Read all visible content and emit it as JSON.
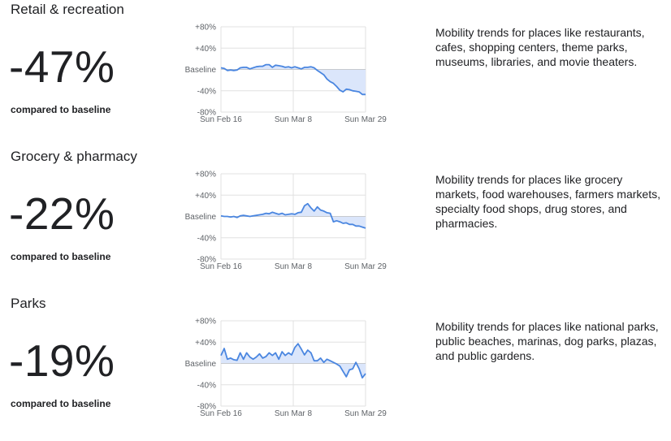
{
  "compared_label": "compared to baseline",
  "colors": {
    "line": "#4a86e0",
    "fill": "#dbe6fb",
    "grid": "#e0e0e0",
    "text": "#202124",
    "axis_text": "#5f6368"
  },
  "sections": [
    {
      "title": "Retail & recreation",
      "value": "-47%",
      "description": "Mobility trends for places like restaurants, cafes, shopping centers, theme parks, museums, libraries, and movie theaters."
    },
    {
      "title": "Grocery & pharmacy",
      "value": "-22%",
      "description": "Mobility trends for places like grocery markets, food warehouses, farmers markets, specialty food shops, drug stores, and pharmacies."
    },
    {
      "title": "Parks",
      "value": "-19%",
      "description": "Mobility trends for places like national parks, public beaches, marinas, dog parks, plazas, and public gardens."
    }
  ],
  "chart_data": [
    {
      "type": "area",
      "title": "Retail & recreation",
      "x_ticks": [
        "Sun Feb 16",
        "Sun Mar 8",
        "Sun Mar 29"
      ],
      "y_ticks": [
        "+80%",
        "+40%",
        "Baseline",
        "-40%",
        "-80%"
      ],
      "ylim": [
        -80,
        80
      ],
      "grid": true,
      "values": [
        3,
        2,
        -2,
        -1,
        -2,
        -1,
        3,
        4,
        4,
        1,
        3,
        5,
        6,
        6,
        9,
        9,
        4,
        8,
        7,
        6,
        4,
        5,
        3,
        5,
        3,
        1,
        4,
        4,
        5,
        3,
        -2,
        -6,
        -10,
        -18,
        -23,
        -26,
        -32,
        -39,
        -42,
        -37,
        -38,
        -40,
        -41,
        -42,
        -47,
        -47
      ]
    },
    {
      "type": "area",
      "title": "Grocery & pharmacy",
      "x_ticks": [
        "Sun Feb 16",
        "Sun Mar 8",
        "Sun Mar 29"
      ],
      "y_ticks": [
        "+80%",
        "+40%",
        "Baseline",
        "-40%",
        "-80%"
      ],
      "ylim": [
        -80,
        80
      ],
      "grid": true,
      "values": [
        1,
        0,
        0,
        -1,
        0,
        -2,
        1,
        2,
        1,
        0,
        1,
        2,
        3,
        4,
        6,
        5,
        8,
        6,
        4,
        6,
        3,
        4,
        5,
        4,
        7,
        8,
        20,
        24,
        16,
        10,
        18,
        12,
        10,
        7,
        6,
        -10,
        -8,
        -10,
        -13,
        -12,
        -15,
        -15,
        -18,
        -18,
        -20,
        -22
      ]
    },
    {
      "type": "area",
      "title": "Parks",
      "x_ticks": [
        "Sun Feb 16",
        "Sun Mar 8",
        "Sun Mar 29"
      ],
      "y_ticks": [
        "+80%",
        "+40%",
        "Baseline",
        "-40%",
        "-80%"
      ],
      "ylim": [
        -80,
        80
      ],
      "grid": true,
      "values": [
        15,
        28,
        8,
        10,
        7,
        6,
        20,
        8,
        20,
        12,
        8,
        12,
        18,
        10,
        13,
        20,
        15,
        20,
        8,
        22,
        15,
        20,
        16,
        30,
        37,
        27,
        16,
        25,
        20,
        5,
        5,
        10,
        2,
        8,
        5,
        2,
        -1,
        -5,
        -15,
        -25,
        -12,
        -10,
        2,
        -10,
        -27,
        -19
      ]
    }
  ]
}
